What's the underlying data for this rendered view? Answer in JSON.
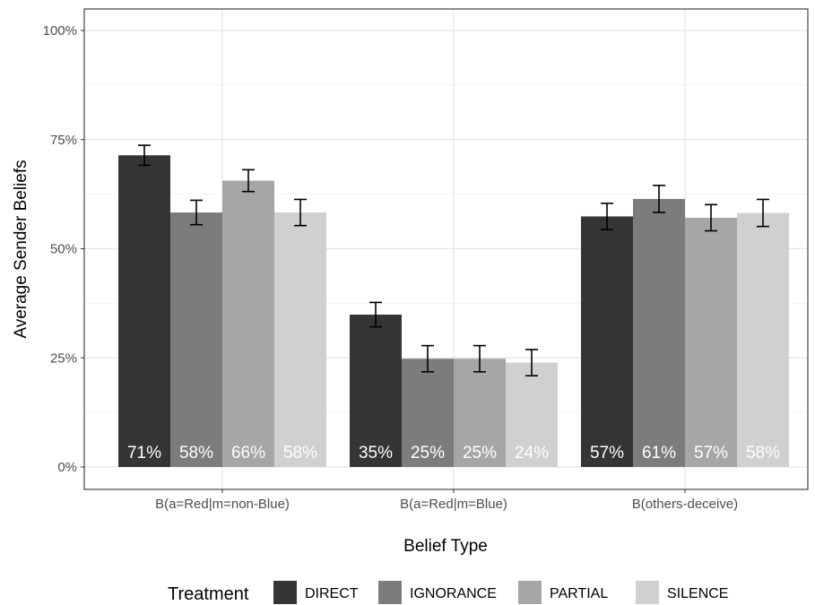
{
  "chart_data": {
    "type": "bar",
    "xlabel": "Belief Type",
    "ylabel": "Average Sender Beliefs",
    "ylim": [
      0,
      1
    ],
    "y_ticks": [
      0,
      0.25,
      0.5,
      0.75,
      1.0
    ],
    "y_tick_labels": [
      "0%",
      "25%",
      "50%",
      "75%",
      "100%"
    ],
    "categories": [
      "B(a=Red|m=non-Blue)",
      "B(a=Red|m=Blue)",
      "B(others-deceive)"
    ],
    "legend": {
      "title": "Treatment",
      "position": "bottom"
    },
    "grid": true,
    "series": [
      {
        "name": "DIRECT",
        "color": "#353535",
        "values": [
          0.714,
          0.349,
          0.574
        ],
        "ci_low": [
          0.691,
          0.321,
          0.544
        ],
        "ci_high": [
          0.737,
          0.377,
          0.604
        ],
        "labels": [
          "71%",
          "35%",
          "57%"
        ]
      },
      {
        "name": "IGNORANCE",
        "color": "#7c7c7c",
        "values": [
          0.583,
          0.248,
          0.614
        ],
        "ci_low": [
          0.555,
          0.218,
          0.583
        ],
        "ci_high": [
          0.611,
          0.278,
          0.645
        ],
        "labels": [
          "58%",
          "25%",
          "61%"
        ]
      },
      {
        "name": "PARTIAL",
        "color": "#a6a6a6",
        "values": [
          0.656,
          0.248,
          0.571
        ],
        "ci_low": [
          0.631,
          0.218,
          0.541
        ],
        "ci_high": [
          0.681,
          0.278,
          0.601
        ],
        "labels": [
          "66%",
          "25%",
          "57%"
        ]
      },
      {
        "name": "SILENCE",
        "color": "#d0d0d0",
        "values": [
          0.583,
          0.239,
          0.582
        ],
        "ci_low": [
          0.553,
          0.209,
          0.551
        ],
        "ci_high": [
          0.613,
          0.269,
          0.613
        ],
        "labels": [
          "58%",
          "24%",
          "58%"
        ]
      }
    ]
  }
}
